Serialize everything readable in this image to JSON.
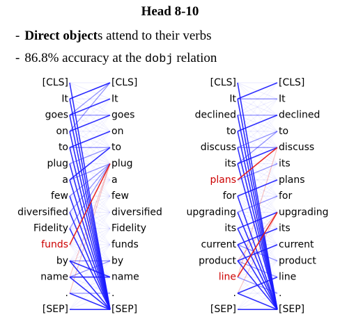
{
  "title": "Head 8-10",
  "bullets": {
    "b1": {
      "dash": "-",
      "bold": "Direct object",
      "rest": "s attend to their verbs"
    },
    "b2": {
      "dash": "-",
      "pre": "86.8% accuracy at the ",
      "code": "dobj",
      "post": " relation"
    }
  },
  "colors": {
    "attention": "#1a1aff",
    "highlight": "#e8140c",
    "text": "#000000",
    "highlight_text": "#cc0000"
  },
  "panels": [
    {
      "id": "left",
      "left_tokens": [
        "[CLS]",
        "It",
        "goes",
        "on",
        "to",
        "plug",
        "a",
        "few",
        "diversified",
        "Fidelity",
        "funds",
        "by",
        "name",
        ".",
        "[SEP]"
      ],
      "right_tokens": [
        "[CLS]",
        "It",
        "goes",
        "on",
        "to",
        "plug",
        "a",
        "few",
        "diversified",
        "Fidelity",
        "funds",
        "by",
        "name",
        ".",
        "[SEP]"
      ],
      "highlight_left": [
        10
      ],
      "strong": [
        [
          0,
          14
        ],
        [
          1,
          14
        ],
        [
          2,
          14
        ],
        [
          3,
          14
        ],
        [
          4,
          14
        ],
        [
          5,
          14
        ],
        [
          6,
          14
        ],
        [
          7,
          14
        ],
        [
          8,
          14
        ],
        [
          9,
          14
        ],
        [
          11,
          14
        ],
        [
          12,
          14
        ],
        [
          13,
          14
        ],
        [
          14,
          14
        ],
        [
          1,
          0
        ],
        [
          2,
          1
        ],
        [
          3,
          2
        ],
        [
          4,
          3
        ],
        [
          11,
          12
        ],
        [
          12,
          12
        ],
        [
          6,
          4
        ]
      ],
      "medium": [
        [
          1,
          0
        ],
        [
          2,
          0
        ],
        [
          3,
          0
        ],
        [
          2,
          2
        ],
        [
          4,
          4
        ],
        [
          5,
          4
        ],
        [
          7,
          5
        ],
        [
          8,
          5
        ],
        [
          9,
          5
        ],
        [
          6,
          5
        ],
        [
          12,
          11
        ],
        [
          13,
          13
        ],
        [
          11,
          11
        ]
      ],
      "red": [
        [
          10,
          5
        ]
      ],
      "faint_red": [
        [
          12,
          5
        ],
        [
          13,
          5
        ]
      ]
    },
    {
      "id": "right",
      "left_tokens": [
        "[CLS]",
        "It",
        "declined",
        "to",
        "discuss",
        "its",
        "plans",
        "for",
        "upgrading",
        "its",
        "current",
        "product",
        "line",
        ".",
        "[SEP]"
      ],
      "right_tokens": [
        "[CLS]",
        "It",
        "declined",
        "to",
        "discuss",
        "its",
        "plans",
        "for",
        "upgrading",
        "its",
        "current",
        "product",
        "line",
        ".",
        "[SEP]"
      ],
      "highlight_left": [
        6,
        12
      ],
      "strong": [
        [
          0,
          14
        ],
        [
          1,
          14
        ],
        [
          2,
          14
        ],
        [
          3,
          14
        ],
        [
          4,
          14
        ],
        [
          5,
          14
        ],
        [
          7,
          14
        ],
        [
          8,
          14
        ],
        [
          9,
          14
        ],
        [
          10,
          14
        ],
        [
          11,
          14
        ],
        [
          13,
          14
        ],
        [
          14,
          14
        ],
        [
          1,
          0
        ],
        [
          3,
          2
        ],
        [
          5,
          4
        ],
        [
          7,
          6
        ],
        [
          9,
          8
        ],
        [
          10,
          9
        ],
        [
          11,
          10
        ],
        [
          13,
          12
        ]
      ],
      "medium": [
        [
          1,
          1
        ],
        [
          2,
          2
        ],
        [
          4,
          3
        ],
        [
          6,
          5
        ],
        [
          8,
          7
        ],
        [
          10,
          11
        ],
        [
          11,
          12
        ],
        [
          12,
          13
        ],
        [
          5,
          3
        ],
        [
          4,
          4
        ]
      ],
      "red": [
        [
          6,
          4
        ],
        [
          12,
          8
        ]
      ],
      "faint_red": [
        [
          12,
          4
        ],
        [
          13,
          8
        ],
        [
          11,
          8
        ]
      ]
    }
  ]
}
